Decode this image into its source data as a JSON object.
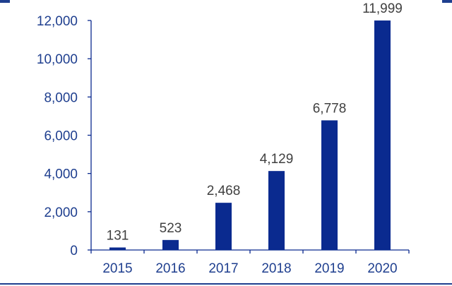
{
  "chart_data": {
    "type": "bar",
    "categories": [
      "2015",
      "2016",
      "2017",
      "2018",
      "2019",
      "2020"
    ],
    "values": [
      131,
      523,
      2468,
      4129,
      6778,
      11999
    ],
    "data_labels": [
      "131",
      "523",
      "2,468",
      "4,129",
      "6,778",
      "11,999"
    ],
    "y_ticks": [
      0,
      2000,
      4000,
      6000,
      8000,
      10000,
      12000
    ],
    "y_tick_labels": [
      "0",
      "2,000",
      "4,000",
      "6,000",
      "8,000",
      "10,000",
      "12,000"
    ],
    "ylim": [
      0,
      12000
    ],
    "grid": false,
    "legend": "none",
    "title": "",
    "xlabel": "",
    "ylabel": ""
  },
  "colors": {
    "bar": "#0a2a8f",
    "axis": "#0a2a8f",
    "tick_label": "#1f3f8f",
    "data_label": "#404040",
    "frame_accent": "#1f3f8f"
  }
}
